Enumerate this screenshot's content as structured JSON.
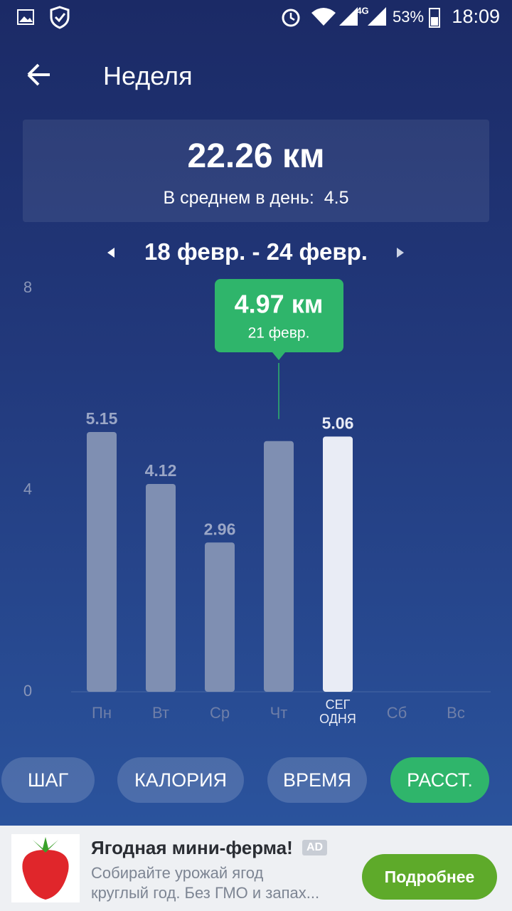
{
  "status_bar": {
    "network": "4G",
    "battery": "53%",
    "time": "18:09"
  },
  "header": {
    "title": "Неделя"
  },
  "summary": {
    "total": "22.26 км",
    "average_label": "В среднем в день:",
    "average_value": "4.5"
  },
  "date_range": "18 февр. - 24 февр.",
  "chart_data": {
    "type": "bar",
    "categories": [
      "Пн",
      "Вт",
      "Ср",
      "Чт",
      "СЕГ\nОДНЯ",
      "Сб",
      "Вс"
    ],
    "values": [
      5.15,
      4.12,
      2.96,
      4.97,
      5.06,
      null,
      null
    ],
    "color": "#7f8fb2",
    "highlight_index": 4,
    "highlight_color": "#e9ecf5",
    "selected_index": 3,
    "tooltip": {
      "label": "4.97 км",
      "date": "21 февр.",
      "color": "#2fb56b"
    },
    "ylim": [
      0,
      8
    ],
    "yticks": [
      0,
      4,
      8
    ]
  },
  "tabs": {
    "items": [
      "ШАГ",
      "КАЛОРИЯ",
      "ВРЕМЯ",
      "РАССТ."
    ],
    "active_index": 3
  },
  "ad": {
    "title": "Ягодная мини-ферма!",
    "badge": "AD",
    "description": [
      "Собирайте урожай ягод",
      "круглый год. Без ГМО и запах..."
    ],
    "button": "Подробнее"
  }
}
